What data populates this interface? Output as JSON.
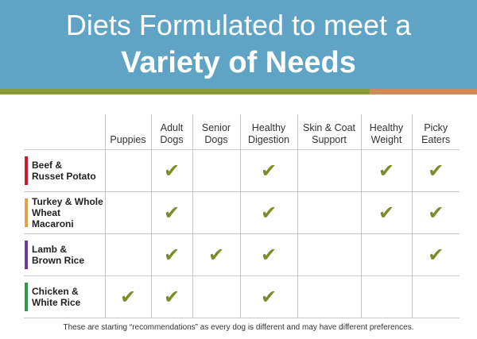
{
  "banner": {
    "line1": "Diets Formulated to meet a",
    "line2": "Variety of Needs"
  },
  "colors": {
    "banner_bg": "#5fa4c4",
    "stripe_green": "#8a9a38",
    "stripe_orange": "#d08a56",
    "check": "#7d8c2a"
  },
  "columns": [
    "Puppies",
    "Adult\nDogs",
    "Senior\nDogs",
    "Healthy\nDigestion",
    "Skin & Coat\nSupport",
    "Healthy\nWeight",
    "Picky\nEaters"
  ],
  "check_icon": "✔",
  "rows": [
    {
      "label": "Beef &\nRusset Potato",
      "color": "#c8202e",
      "checks": [
        false,
        true,
        false,
        true,
        false,
        true,
        true
      ]
    },
    {
      "label": "Turkey & Whole\nWheat Macaroni",
      "color": "#e3a24a",
      "checks": [
        false,
        true,
        false,
        true,
        false,
        true,
        true
      ]
    },
    {
      "label": "Lamb &\nBrown Rice",
      "color": "#6b3f96",
      "checks": [
        false,
        true,
        true,
        true,
        false,
        false,
        true
      ]
    },
    {
      "label": "Chicken &\nWhite Rice",
      "color": "#2e9a48",
      "checks": [
        true,
        true,
        false,
        true,
        false,
        false,
        false
      ]
    }
  ],
  "footnote": "These are starting “recommendations” as every dog is different and may have different preferences."
}
